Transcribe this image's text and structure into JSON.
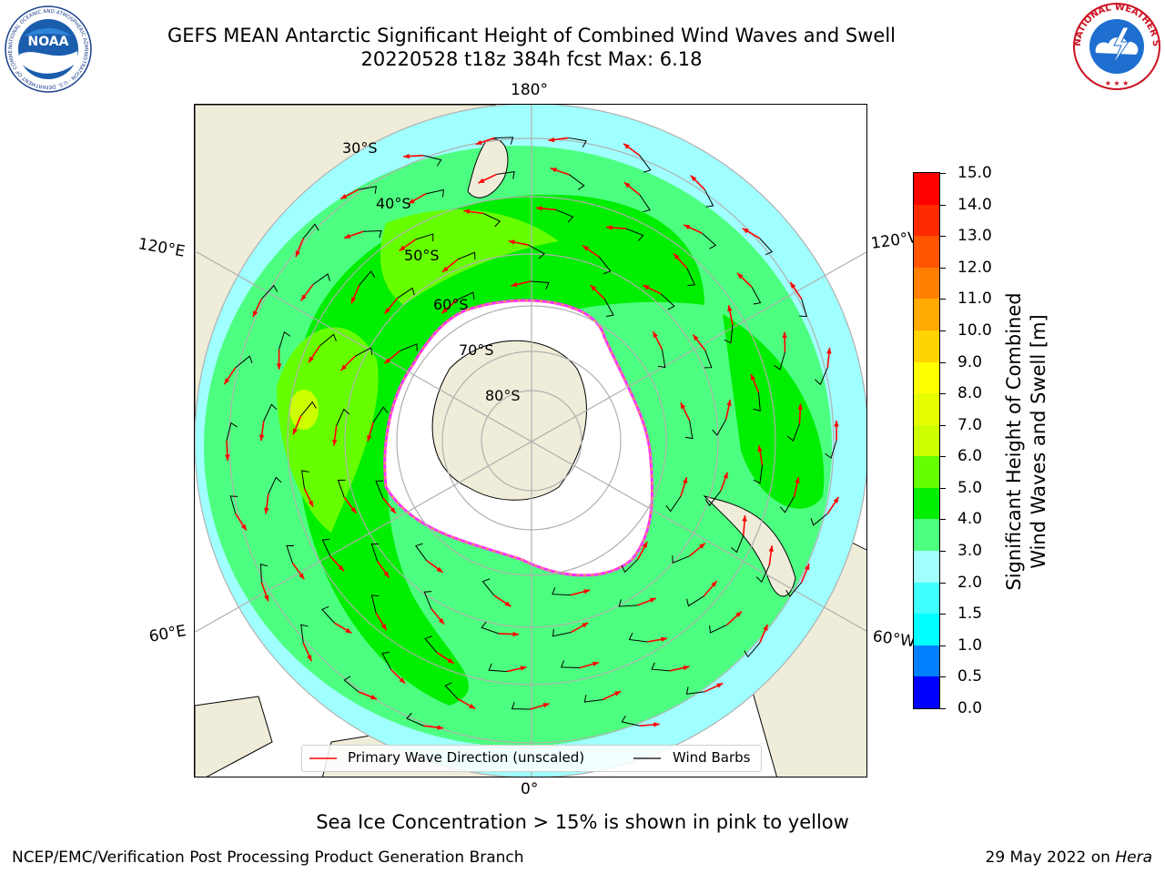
{
  "header": {
    "title_line1": "GEFS MEAN Antarctic Significant Height of Combined Wind Waves and Swell",
    "title_line2": "20220528 t18z 384h fcst   Max: 6.18"
  },
  "logos": {
    "left": {
      "name": "NOAA",
      "text": "NOAA",
      "ring_text": "NATIONAL OCEANIC AND ATMOSPHERIC ADMINISTRATION · U.S. DEPARTMENT OF COMMERCE"
    },
    "right": {
      "name": "National Weather Service",
      "ring_text": "NATIONAL WEATHER SERVICE"
    }
  },
  "map": {
    "projection": "south polar stereographic",
    "longitude_labels": {
      "top": "180°",
      "bottom": "0°",
      "upper_left": "120°E",
      "lower_left": "60°E",
      "upper_right": "120°W",
      "lower_right": "60°W"
    },
    "latitude_labels": [
      "30°S",
      "40°S",
      "50°S",
      "60°S",
      "70°S",
      "80°S"
    ],
    "colors": {
      "land": "#efecd9",
      "ice": "#ffffff",
      "ice_edge": [
        "#ff33ff",
        "#ffc000",
        "#ffff40"
      ],
      "grid": "#b0b0b0",
      "wave_arrow": "#ff0000",
      "wind_barb": "#000000"
    },
    "overlays": [
      {
        "name": "Primary Wave Direction (unscaled)",
        "color": "#ff0000"
      },
      {
        "name": "Wind Barbs",
        "color": "#000000"
      }
    ]
  },
  "colorbar": {
    "label_line1": "Significant Height of Combined",
    "label_line2": "Wind Waves and Swell [m]",
    "ticks": [
      "0.0",
      "0.5",
      "1.0",
      "1.5",
      "2.0",
      "3.0",
      "4.0",
      "5.0",
      "6.0",
      "7.0",
      "8.0",
      "9.0",
      "10.0",
      "11.0",
      "12.0",
      "13.0",
      "14.0",
      "15.0"
    ],
    "colors": [
      "#0000ff",
      "#0080ff",
      "#00ffff",
      "#40ffff",
      "#a0ffff",
      "#4dff80",
      "#00ee00",
      "#66ff00",
      "#ccff00",
      "#e6ff00",
      "#ffff00",
      "#ffd400",
      "#ffaa00",
      "#ff8000",
      "#ff5500",
      "#ff2a00",
      "#ff0000"
    ]
  },
  "legend": {
    "items": [
      {
        "label": "Primary Wave Direction (unscaled)",
        "color": "#ff0000"
      },
      {
        "label": "Wind Barbs",
        "color": "#000000"
      }
    ]
  },
  "footer": {
    "note": "Sea Ice Concentration > 15% is shown in pink to yellow",
    "credit_left": "NCEP/EMC/Verification Post Processing Product Generation Branch",
    "date": "29 May 2022 on ",
    "machine": "Hera"
  }
}
